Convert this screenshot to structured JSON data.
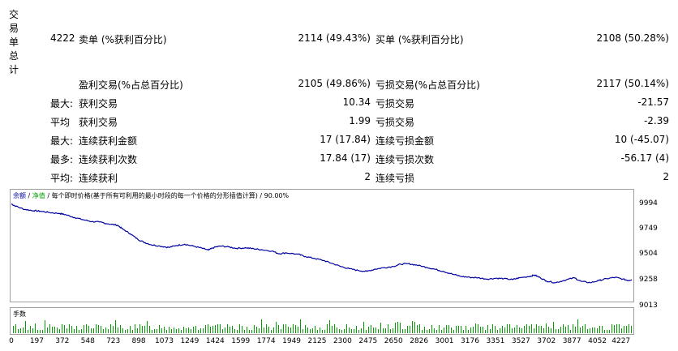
{
  "header_vertical": [
    "交",
    "易",
    "单",
    "总",
    "计"
  ],
  "summary": {
    "total_trades": "4222",
    "short_label": "卖单 (%获利百分比)",
    "short_value": "2114 (49.43%)",
    "long_label": "买单 (%获利百分比)",
    "long_value": "2108 (50.28%)",
    "profit_trades_label": "盈利交易(%占总百分比)",
    "profit_trades_value": "2105 (49.86%)",
    "loss_trades_label": "亏损交易(%占总百分比)",
    "loss_trades_value": "2117 (50.14%)"
  },
  "rows": [
    {
      "prefix": "最大:",
      "left_label": "获利交易",
      "left_value": "10.34",
      "right_label": "亏损交易",
      "right_value": "-21.57"
    },
    {
      "prefix": "平均",
      "left_label": "获利交易",
      "left_value": "1.99",
      "right_label": "亏损交易",
      "right_value": "-2.39"
    },
    {
      "prefix": "最大:",
      "left_label": "连续获利金额",
      "left_value": "17 (17.84)",
      "right_label": "连续亏损金额",
      "right_value": "10 (-45.07)"
    },
    {
      "prefix": "最多:",
      "left_label": "连续获利次数",
      "left_value": "17.84 (17)",
      "right_label": "连续亏损次数",
      "right_value": "-56.17 (4)"
    },
    {
      "prefix": "平均:",
      "left_label": "连续获利",
      "left_value": "2",
      "right_label": "连续亏损",
      "right_value": "2"
    }
  ],
  "chart": {
    "legend_balance": "余额",
    "legend_equity": "净值",
    "legend_text": "/ 每个即时价格(基于所有可利用的最小时段的每一个价格的分形插值计算) / 90.00%",
    "balance_color": "#0000a0",
    "equity_color": "#00a000",
    "volume_label": "手数",
    "volume_color": "#00a000"
  },
  "chart_data": {
    "type": "line",
    "ylim": [
      8950,
      10060
    ],
    "y_ticks": [
      "9994",
      "9749",
      "9504",
      "9258",
      "9013"
    ],
    "x_ticks": [
      "0",
      "197",
      "372",
      "548",
      "723",
      "898",
      "1073",
      "1249",
      "1424",
      "1599",
      "1774",
      "1949",
      "2125",
      "2300",
      "2475",
      "2650",
      "2826",
      "3001",
      "3176",
      "3351",
      "3527",
      "3702",
      "3877",
      "4052",
      "4227"
    ],
    "x_max": 4222,
    "series": [
      {
        "points": [
          [
            0,
            10010
          ],
          [
            30,
            9985
          ],
          [
            90,
            9950
          ],
          [
            150,
            9935
          ],
          [
            197,
            9930
          ],
          [
            260,
            9915
          ],
          [
            330,
            9905
          ],
          [
            372,
            9890
          ],
          [
            430,
            9860
          ],
          [
            490,
            9835
          ],
          [
            548,
            9815
          ],
          [
            600,
            9810
          ],
          [
            660,
            9790
          ],
          [
            723,
            9775
          ],
          [
            760,
            9730
          ],
          [
            810,
            9680
          ],
          [
            860,
            9620
          ],
          [
            898,
            9590
          ],
          [
            950,
            9560
          ],
          [
            1010,
            9545
          ],
          [
            1073,
            9530
          ],
          [
            1120,
            9550
          ],
          [
            1180,
            9565
          ],
          [
            1249,
            9540
          ],
          [
            1300,
            9520
          ],
          [
            1340,
            9500
          ],
          [
            1380,
            9530
          ],
          [
            1424,
            9545
          ],
          [
            1480,
            9535
          ],
          [
            1530,
            9520
          ],
          [
            1599,
            9525
          ],
          [
            1650,
            9515
          ],
          [
            1700,
            9505
          ],
          [
            1774,
            9490
          ],
          [
            1820,
            9460
          ],
          [
            1870,
            9470
          ],
          [
            1949,
            9455
          ],
          [
            2000,
            9430
          ],
          [
            2060,
            9410
          ],
          [
            2125,
            9385
          ],
          [
            2180,
            9355
          ],
          [
            2240,
            9320
          ],
          [
            2300,
            9295
          ],
          [
            2360,
            9275
          ],
          [
            2420,
            9265
          ],
          [
            2475,
            9290
          ],
          [
            2530,
            9305
          ],
          [
            2600,
            9320
          ],
          [
            2650,
            9345
          ],
          [
            2700,
            9350
          ],
          [
            2760,
            9335
          ],
          [
            2826,
            9310
          ],
          [
            2880,
            9290
          ],
          [
            2940,
            9265
          ],
          [
            3001,
            9235
          ],
          [
            3060,
            9210
          ],
          [
            3120,
            9200
          ],
          [
            3176,
            9195
          ],
          [
            3240,
            9180
          ],
          [
            3300,
            9190
          ],
          [
            3351,
            9185
          ],
          [
            3410,
            9175
          ],
          [
            3460,
            9195
          ],
          [
            3527,
            9210
          ],
          [
            3560,
            9225
          ],
          [
            3600,
            9195
          ],
          [
            3640,
            9160
          ],
          [
            3702,
            9140
          ],
          [
            3760,
            9165
          ],
          [
            3830,
            9195
          ],
          [
            3877,
            9155
          ],
          [
            3940,
            9140
          ],
          [
            4000,
            9165
          ],
          [
            4052,
            9185
          ],
          [
            4110,
            9200
          ],
          [
            4160,
            9180
          ],
          [
            4200,
            9165
          ],
          [
            4222,
            9175
          ]
        ]
      }
    ]
  }
}
